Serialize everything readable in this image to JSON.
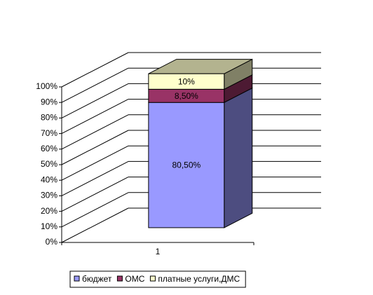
{
  "chart_data": {
    "type": "bar3d-stacked",
    "categories": [
      "1"
    ],
    "series": [
      {
        "name": "бюджет",
        "color": "#9999ff",
        "values": [
          80.5
        ],
        "value_labels": [
          "80,50%"
        ]
      },
      {
        "name": "ОМС",
        "color": "#993366",
        "values": [
          8.5
        ],
        "value_labels": [
          "8,50%"
        ]
      },
      {
        "name": "платные услуги,ДМС",
        "color": "#ffffcc",
        "values": [
          10
        ],
        "value_labels": [
          "10%"
        ]
      }
    ],
    "ylim": [
      0,
      100
    ],
    "yticks": [
      {
        "value": 0,
        "label": "0%"
      },
      {
        "value": 10,
        "label": "10%"
      },
      {
        "value": 20,
        "label": "20%"
      },
      {
        "value": 30,
        "label": "30%"
      },
      {
        "value": 40,
        "label": "40%"
      },
      {
        "value": 50,
        "label": "50%"
      },
      {
        "value": 60,
        "label": "60%"
      },
      {
        "value": 70,
        "label": "70%"
      },
      {
        "value": 80,
        "label": "80%"
      },
      {
        "value": 90,
        "label": "90%"
      },
      {
        "value": 100,
        "label": "100%"
      }
    ],
    "grid": true,
    "legend": "bottom"
  }
}
